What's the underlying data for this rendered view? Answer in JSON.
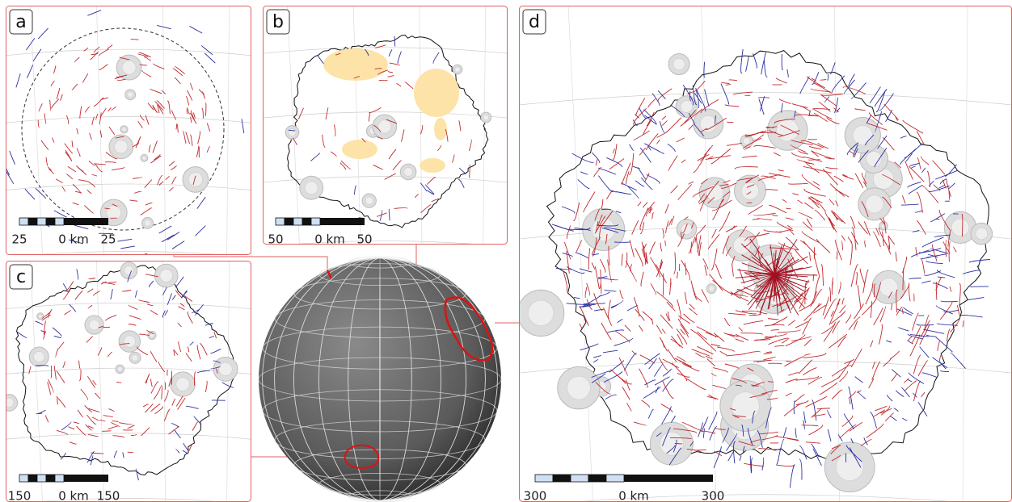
{
  "panels": [
    {
      "label": "a",
      "scale": {
        "left": "25",
        "middle": "0 km",
        "right": "25"
      }
    },
    {
      "label": "b",
      "scale": {
        "left": "50",
        "middle": "0 km",
        "right": "50"
      }
    },
    {
      "label": "c",
      "scale": {
        "left": "150",
        "middle": "0 km",
        "right": "150"
      }
    },
    {
      "label": "d",
      "scale": {
        "left": "300",
        "middle": "0 km",
        "right": "300"
      }
    }
  ]
}
